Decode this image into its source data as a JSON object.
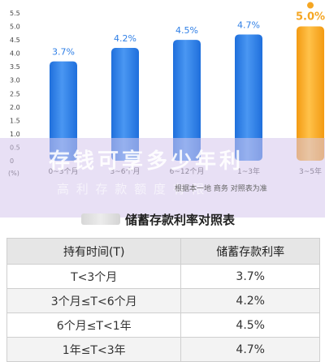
{
  "chart_data": {
    "type": "bar",
    "categories": [
      "0~3个月",
      "3~6个月",
      "6~12个月",
      "1~3年",
      "3~5年"
    ],
    "values": [
      3.7,
      4.2,
      4.5,
      4.7,
      5.0
    ],
    "data_labels": [
      "3.7%",
      "4.2%",
      "4.5%",
      "4.7%",
      "5.0%"
    ],
    "y_ticks": [
      "0",
      "0.5",
      "1.0",
      "1.5",
      "2.0",
      "2.5",
      "3.0",
      "3.5",
      "4.0",
      "4.5",
      "5.0",
      "5.5"
    ],
    "y_unit": "(%)",
    "ylim": [
      0,
      5.5
    ],
    "grid": false,
    "colors": {
      "bar": "#2f7fe6",
      "bar_highlight": "#f5a623",
      "label": "#2f7fe6",
      "label_highlight": "#f5a623"
    },
    "highlight_index": 4
  },
  "overlay": {
    "headline": "存钱可享多少年利",
    "subline": "高 利 存 款 额 度 有 限"
  },
  "note": "根据本一地 商务 对照表为准",
  "table": {
    "title": "储蓄存款利率对照表",
    "headers": [
      "持有时间(T)",
      "储蓄存款利率"
    ],
    "rows": [
      [
        "T<3个月",
        "3.7%"
      ],
      [
        "3个月≤T<6个月",
        "4.2%"
      ],
      [
        "6个月≤T<1年",
        "4.5%"
      ],
      [
        "1年≤T<3年",
        "4.7%"
      ]
    ]
  }
}
